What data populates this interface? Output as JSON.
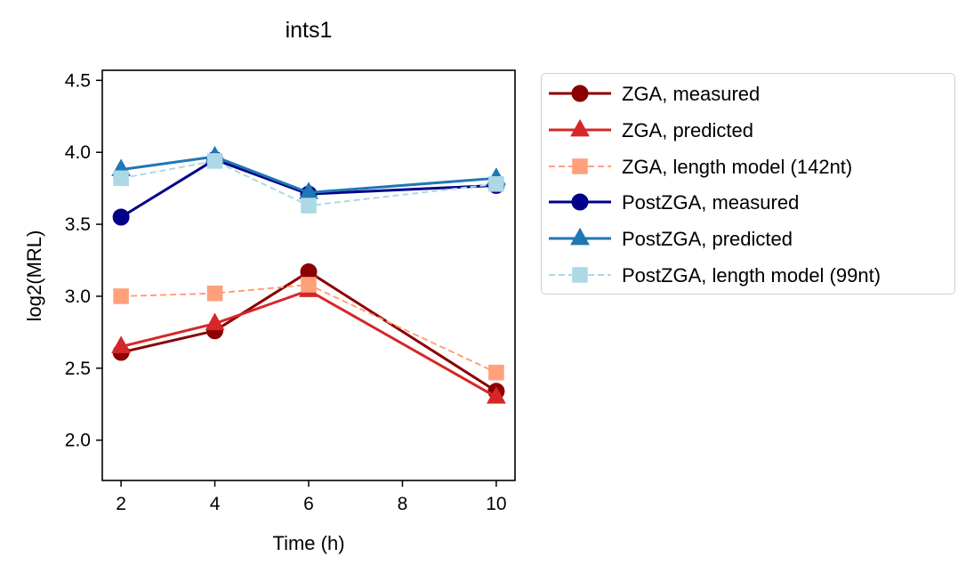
{
  "chart_data": {
    "type": "line",
    "title": "ints1",
    "xlabel": "Time (h)",
    "ylabel": "log2(MRL)",
    "xlim": [
      1.6,
      10.4
    ],
    "ylim": [
      1.72,
      4.57
    ],
    "xticks": [
      2,
      4,
      6,
      8,
      10
    ],
    "yticks": [
      2.0,
      2.5,
      3.0,
      3.5,
      4.0,
      4.5
    ],
    "ytick_labels": [
      "2.0",
      "2.5",
      "3.0",
      "3.5",
      "4.0",
      "4.5"
    ],
    "x": [
      2,
      4,
      6,
      10
    ],
    "grid": false,
    "legend_position": "outside-right",
    "series": [
      {
        "name": "ZGA, measured",
        "values": [
          2.61,
          2.76,
          3.17,
          2.34
        ],
        "color": "#8b0000",
        "marker": "circle",
        "dash": "solid"
      },
      {
        "name": "ZGA, predicted",
        "values": [
          2.65,
          2.81,
          3.04,
          2.3
        ],
        "color": "#d62728",
        "marker": "triangle",
        "dash": "solid"
      },
      {
        "name": "ZGA, length model (142nt)",
        "values": [
          3.0,
          3.02,
          3.08,
          2.47
        ],
        "color": "#ffa07a",
        "marker": "square",
        "dash": "dashed"
      },
      {
        "name": "PostZGA, measured",
        "values": [
          3.55,
          3.95,
          3.71,
          3.77
        ],
        "color": "#00008b",
        "marker": "circle",
        "dash": "solid"
      },
      {
        "name": "PostZGA, predicted",
        "values": [
          3.88,
          3.97,
          3.72,
          3.82
        ],
        "color": "#1f77b4",
        "marker": "triangle",
        "dash": "solid"
      },
      {
        "name": "PostZGA, length model (99nt)",
        "values": [
          3.82,
          3.94,
          3.63,
          3.78
        ],
        "color": "#add8e6",
        "marker": "square",
        "dash": "dashed"
      }
    ]
  }
}
